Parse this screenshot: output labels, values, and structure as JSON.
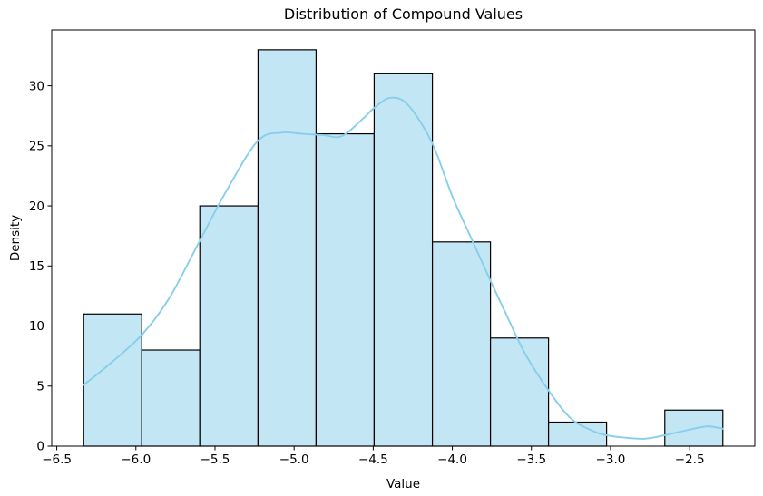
{
  "chart_data": {
    "type": "bar",
    "subtype": "histogram-with-kde",
    "title": "Distribution of Compound Values",
    "xlabel": "Value",
    "ylabel": "Density",
    "xlim": [
      -6.532,
      -2.088
    ],
    "ylim": [
      0,
      34.65
    ],
    "grid": false,
    "legend": null,
    "xticks": {
      "values": [
        -6.5,
        -6.0,
        -5.5,
        -5.0,
        -4.5,
        -4.0,
        -3.5,
        -3.0,
        -2.5
      ],
      "labels": [
        "−6.5",
        "−6.0",
        "−5.5",
        "−5.0",
        "−4.5",
        "−4.0",
        "−3.5",
        "−3.0",
        "−2.5"
      ]
    },
    "yticks": {
      "values": [
        0,
        5,
        10,
        15,
        20,
        25,
        30
      ],
      "labels": [
        "0",
        "5",
        "10",
        "15",
        "20",
        "25",
        "30"
      ]
    },
    "bins": {
      "edges": [
        -6.33,
        -5.963,
        -5.596,
        -5.228,
        -4.861,
        -4.494,
        -4.126,
        -3.759,
        -3.392,
        -3.025,
        -2.657,
        -2.29
      ],
      "counts": [
        11,
        8,
        20,
        33,
        26,
        31,
        17,
        9,
        2,
        0,
        3
      ]
    },
    "kde": {
      "x": [
        -6.33,
        -6.16,
        -5.96,
        -5.79,
        -5.6,
        -5.43,
        -5.23,
        -5.08,
        -4.95,
        -4.82,
        -4.7,
        -4.57,
        -4.49,
        -4.39,
        -4.28,
        -4.13,
        -4.0,
        -3.88,
        -3.76,
        -3.65,
        -3.54,
        -3.39,
        -3.25,
        -3.1,
        -3.02,
        -2.89,
        -2.78,
        -2.66,
        -2.51,
        -2.39,
        -2.29
      ],
      "y": [
        5.1,
        6.9,
        9.3,
        12.3,
        17.0,
        21.2,
        25.4,
        26.1,
        26.0,
        25.9,
        25.8,
        27.2,
        28.2,
        29.0,
        28.4,
        25.3,
        20.8,
        17.3,
        13.8,
        10.7,
        7.7,
        4.6,
        2.3,
        1.2,
        0.9,
        0.68,
        0.62,
        0.9,
        1.35,
        1.65,
        1.45
      ]
    },
    "colors": {
      "bar_fill": "#c3e6f5",
      "bar_edge": "#000000",
      "kde_line": "#87ceeb",
      "axis": "#000000",
      "text": "#000000",
      "background": "#ffffff"
    }
  }
}
